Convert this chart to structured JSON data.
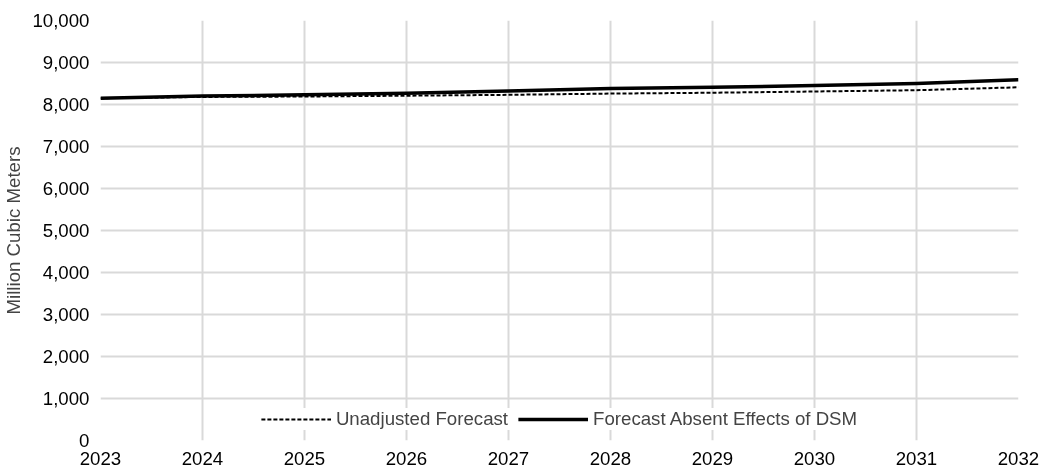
{
  "chart_data": {
    "type": "line",
    "ylabel": "Million Cubic Meters",
    "x": [
      2023,
      2024,
      2025,
      2026,
      2027,
      2028,
      2029,
      2030,
      2031,
      2032
    ],
    "xlim": [
      2023,
      2032
    ],
    "xticks": [
      2023,
      2024,
      2025,
      2026,
      2027,
      2028,
      2029,
      2030,
      2031,
      2032
    ],
    "ylim": [
      0,
      10000
    ],
    "yticks": [
      {
        "value": 0,
        "label": "0"
      },
      {
        "value": 1000,
        "label": "1,000"
      },
      {
        "value": 2000,
        "label": "2,000"
      },
      {
        "value": 3000,
        "label": "3,000"
      },
      {
        "value": 4000,
        "label": "4,000"
      },
      {
        "value": 5000,
        "label": "5,000"
      },
      {
        "value": 6000,
        "label": "6,000"
      },
      {
        "value": 7000,
        "label": "7,000"
      },
      {
        "value": 8000,
        "label": "8,000"
      },
      {
        "value": 9000,
        "label": "9,000"
      },
      {
        "value": 10000,
        "label": "10,000"
      }
    ],
    "grid": true,
    "legend": "bottom",
    "marker": "none",
    "series": [
      {
        "name": "Unadjusted Forecast",
        "color": "#000000",
        "line_style": "dashed",
        "values": [
          8150,
          8180,
          8190,
          8210,
          8230,
          8260,
          8280,
          8310,
          8340,
          8410
        ]
      },
      {
        "name": "Forecast Absent Effects of DSM",
        "color": "#000000",
        "line_style": "solid",
        "values": [
          8150,
          8200,
          8230,
          8270,
          8320,
          8380,
          8410,
          8450,
          8500,
          8590
        ]
      }
    ]
  }
}
